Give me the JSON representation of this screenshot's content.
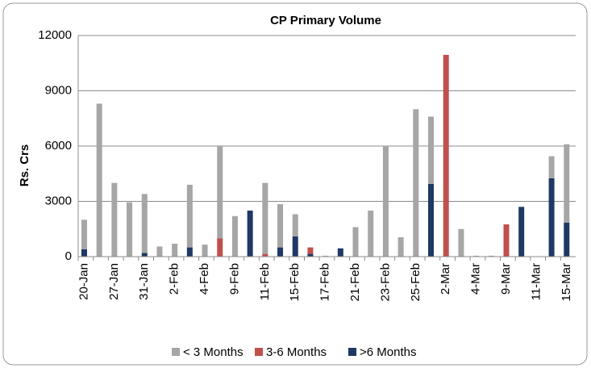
{
  "chart_data": {
    "type": "stacked-bar",
    "title": "CP Primary Volume",
    "y_label": "Rs. Crs",
    "categories": [
      "20-Jan",
      null,
      "27-Jan",
      null,
      "31-Jan",
      null,
      "2-Feb",
      null,
      "4-Feb",
      null,
      "9-Feb",
      null,
      "11-Feb",
      null,
      "15-Feb",
      null,
      "17-Feb",
      null,
      "21-Feb",
      null,
      "23-Feb",
      null,
      "25-Feb",
      null,
      "2-Mar",
      null,
      "4-Mar",
      null,
      "9-Mar",
      null,
      "11-Mar",
      null,
      "15-Mar"
    ],
    "series": [
      {
        "name": "< 3 Months",
        "color": "#a6a6a6",
        "values": [
          1600,
          8300,
          4000,
          2950,
          3200,
          550,
          700,
          3400,
          650,
          5000,
          2200,
          0,
          3850,
          2350,
          1200,
          0,
          50,
          0,
          1600,
          2500,
          6000,
          1050,
          8000,
          3650,
          0,
          1500,
          50,
          50,
          0,
          0,
          0,
          1200,
          4250
        ]
      },
      {
        "name": "3-6 Months",
        "color": "#c0504d",
        "values": [
          0,
          0,
          0,
          0,
          0,
          0,
          0,
          0,
          0,
          1000,
          0,
          0,
          150,
          0,
          0,
          350,
          0,
          0,
          0,
          0,
          0,
          0,
          0,
          0,
          10950,
          0,
          0,
          0,
          1750,
          0,
          0,
          0,
          0
        ]
      },
      {
        "name": ">6 Months",
        "color": "#1f3864",
        "values": [
          400,
          0,
          0,
          0,
          200,
          0,
          0,
          500,
          0,
          0,
          0,
          2500,
          0,
          500,
          1100,
          150,
          0,
          450,
          0,
          0,
          0,
          0,
          0,
          3950,
          0,
          0,
          0,
          0,
          0,
          2700,
          0,
          4250,
          1850
        ]
      }
    ],
    "ylim": [
      0,
      12000
    ],
    "yticks": [
      0,
      3000,
      6000,
      9000,
      12000
    ],
    "grid": true
  }
}
